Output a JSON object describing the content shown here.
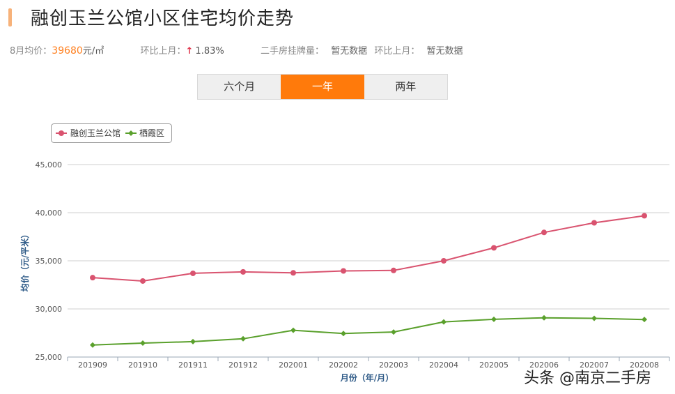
{
  "page": {
    "title": "融创玉兰公馆小区住宅均价走势",
    "stats": {
      "month_label": "8月均价：",
      "price_value": "39680",
      "price_unit": "元/㎡",
      "mom_label": "环比上月：",
      "mom_arrow": "↑",
      "mom_value": "1.83%",
      "listings_label": "二手房挂牌量：",
      "listings_value": "暂无数据",
      "listings_mom_label": "环比上月：",
      "listings_mom_value": "暂无数据"
    },
    "range_tabs": [
      {
        "label": "六个月",
        "active": false
      },
      {
        "label": "一年",
        "active": true
      },
      {
        "label": "两年",
        "active": false
      }
    ],
    "watermark": "头条 @南京二手房"
  },
  "chart_data": {
    "type": "line",
    "title": "",
    "xlabel": "月份（年/月）",
    "ylabel": "均价（元/平米）",
    "categories": [
      "201909",
      "201910",
      "201911",
      "201912",
      "202001",
      "202002",
      "202003",
      "202004",
      "202005",
      "202006",
      "202007",
      "202008"
    ],
    "ylim": [
      25000,
      45000
    ],
    "yticks": [
      25000,
      30000,
      35000,
      40000,
      45000
    ],
    "ytick_labels": [
      "25,000",
      "30,000",
      "35,000",
      "40,000",
      "45,000"
    ],
    "grid": true,
    "legend_position": "top-left",
    "series": [
      {
        "name": "融创玉兰公馆",
        "color": "#d9536f",
        "marker": "circle",
        "values": [
          33250,
          32900,
          33700,
          33850,
          33750,
          33950,
          34000,
          35000,
          36350,
          37950,
          38950,
          39680
        ]
      },
      {
        "name": "栖霞区",
        "color": "#5aa02c",
        "marker": "diamond",
        "values": [
          26250,
          26450,
          26600,
          26900,
          27780,
          27450,
          27600,
          28650,
          28920,
          29080,
          29020,
          28900
        ]
      }
    ]
  }
}
